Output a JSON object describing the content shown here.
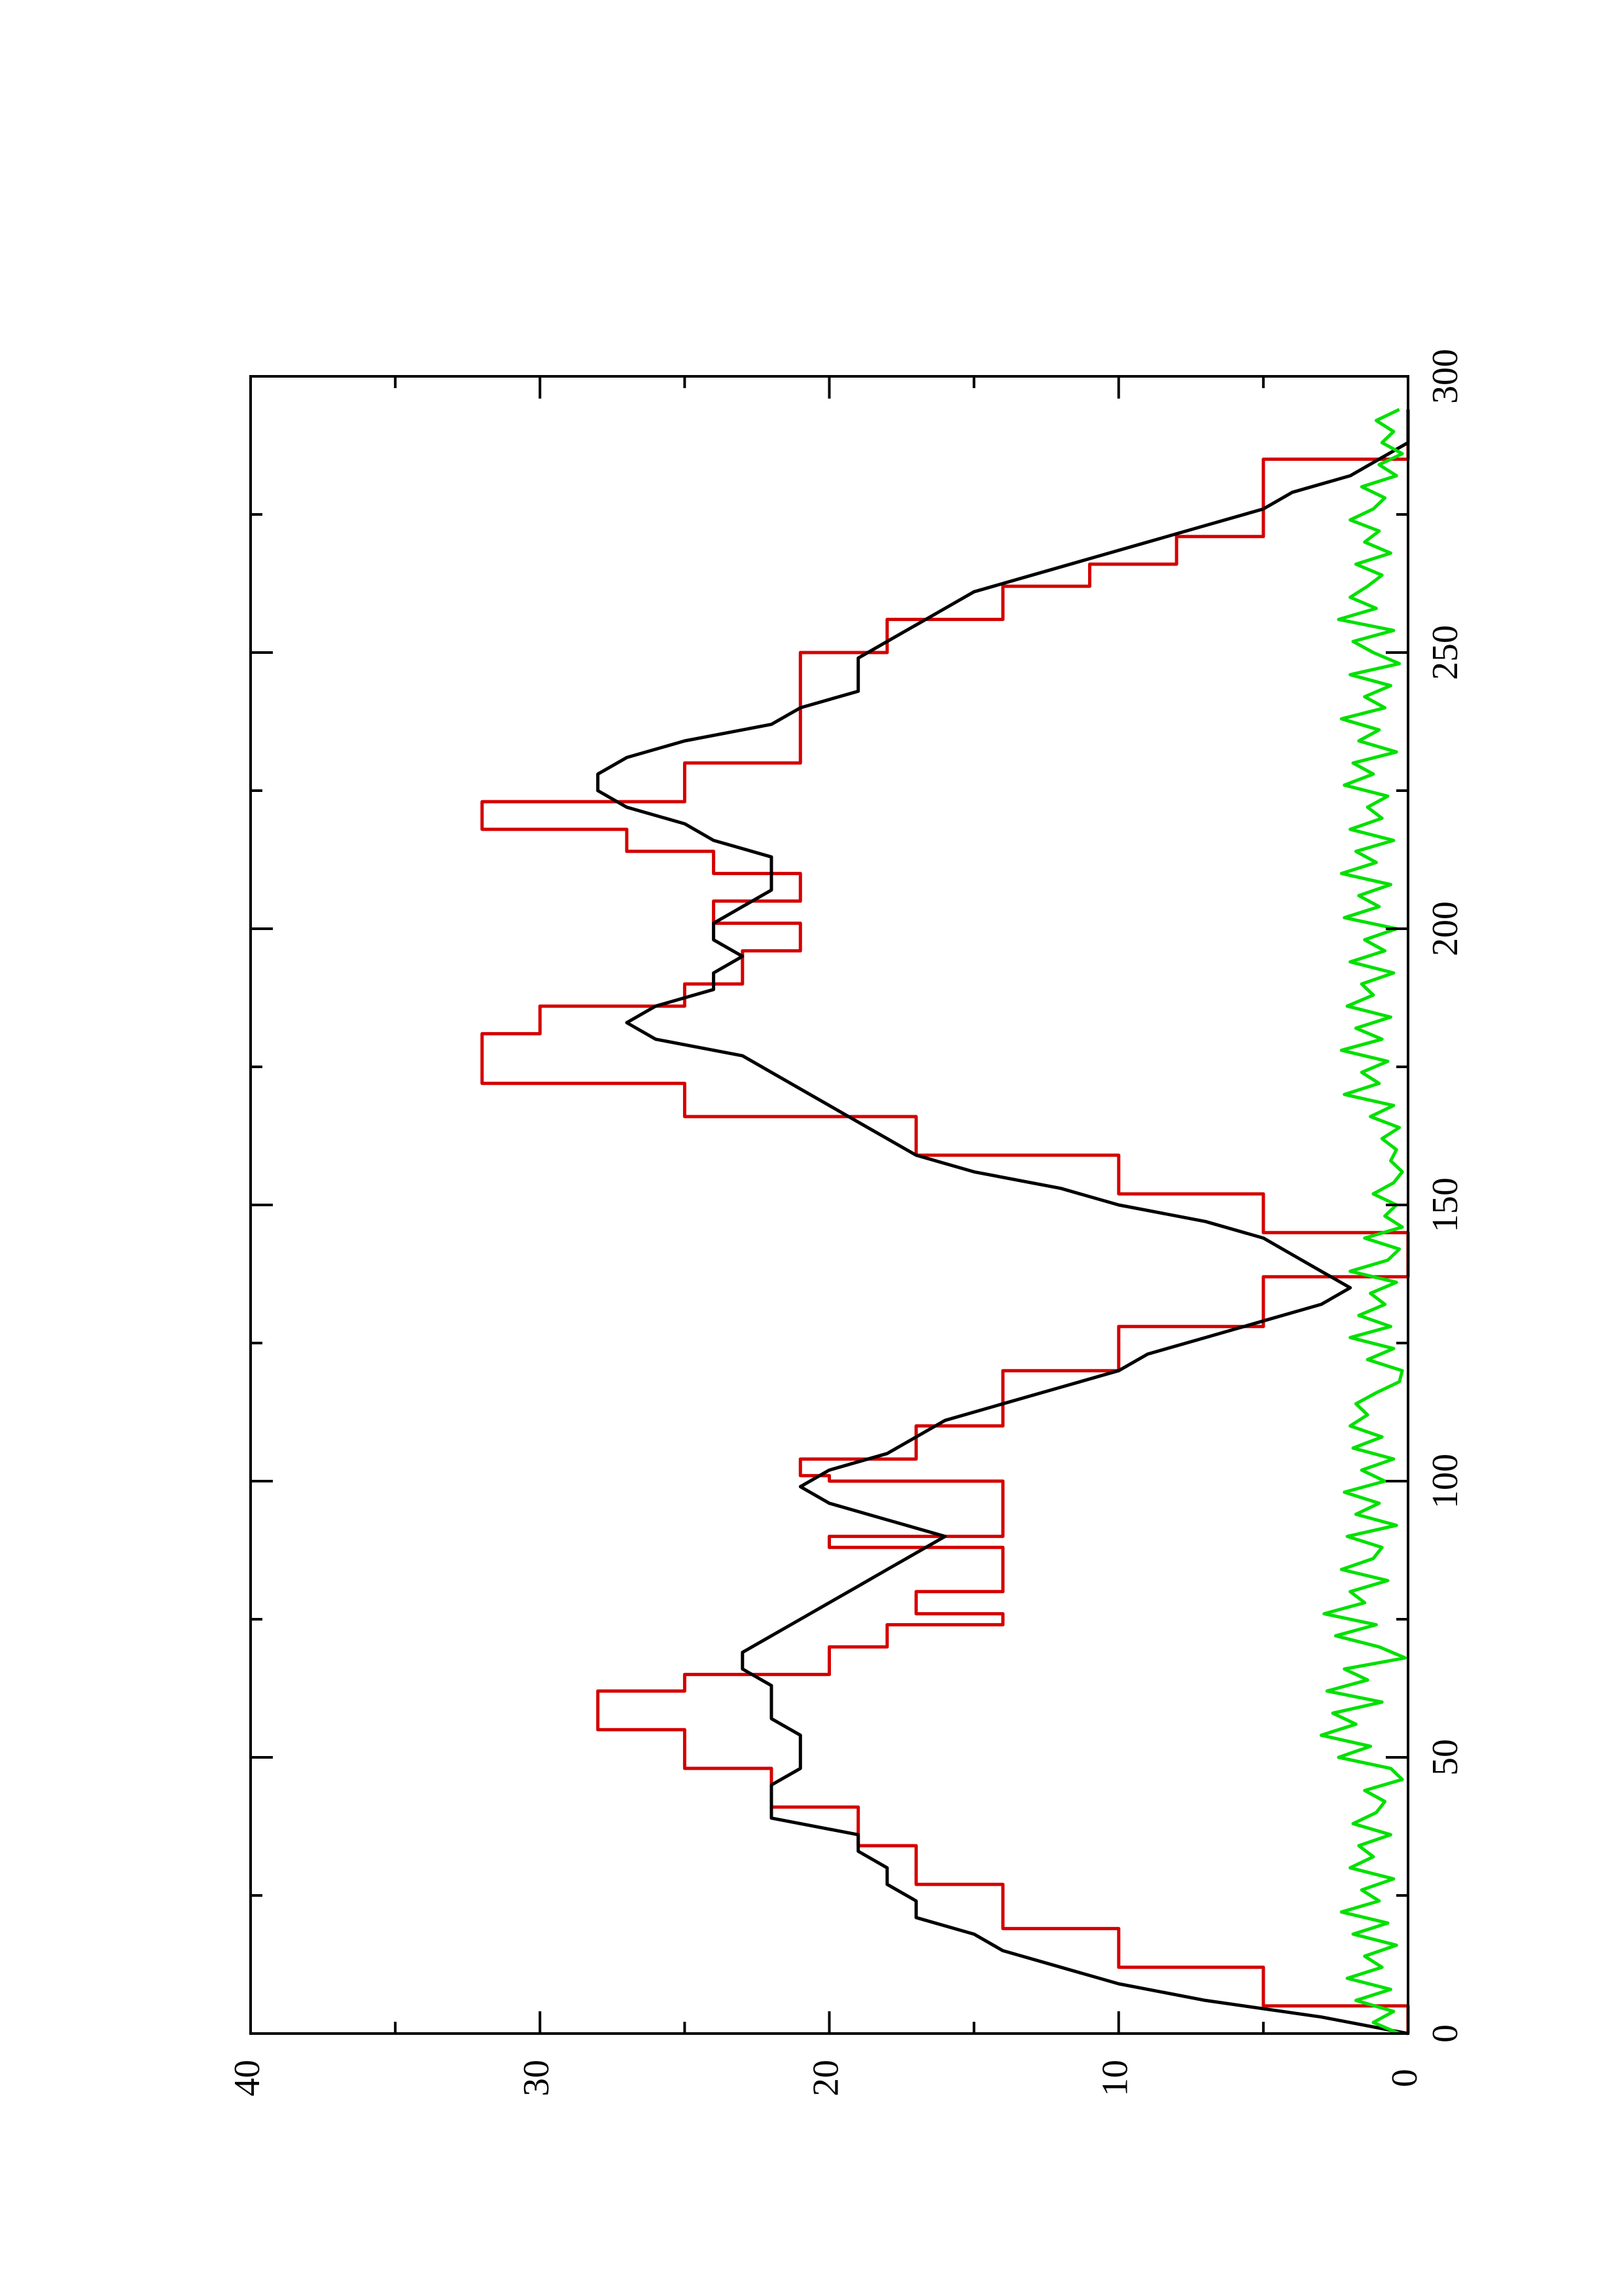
{
  "chart_data": {
    "type": "line",
    "title": "",
    "xlabel": "",
    "ylabel": "",
    "orientation": "rotated-90-ccw",
    "xlim": [
      0,
      300
    ],
    "ylim": [
      0,
      40
    ],
    "x_ticks": [
      0,
      50,
      100,
      150,
      200,
      250,
      300
    ],
    "x_tick_labels": [
      "0",
      "50",
      "100",
      "150",
      "200",
      "250",
      "300"
    ],
    "x_minor_ticks": [
      25,
      75,
      125,
      175,
      225,
      275
    ],
    "y_ticks": [
      0,
      10,
      20,
      30,
      40
    ],
    "y_tick_labels": [
      "0",
      "10",
      "20",
      "30",
      "40"
    ],
    "y_minor_ticks": [
      5,
      15,
      25,
      35
    ],
    "grid": false,
    "legend": "none",
    "series": [
      {
        "color": "#d40000",
        "x": [
          0,
          5,
          5,
          12,
          12,
          19,
          19,
          27,
          27,
          34,
          34,
          41,
          41,
          48,
          48,
          55,
          55,
          62,
          62,
          65,
          65,
          70,
          70,
          74,
          74,
          76,
          76,
          80,
          80,
          88,
          88,
          90,
          90,
          100,
          100,
          101,
          101,
          104,
          104,
          110,
          110,
          120,
          120,
          128,
          128,
          137,
          137,
          145,
          145,
          152,
          152,
          159,
          159,
          166,
          166,
          172,
          172,
          181,
          181,
          186,
          186,
          190,
          190,
          196,
          196,
          201,
          201,
          205,
          205,
          210,
          210,
          214,
          214,
          218,
          218,
          223,
          223,
          230,
          230,
          240,
          240,
          250,
          250,
          256,
          256,
          262,
          262,
          266,
          266,
          271,
          271,
          285,
          285,
          292
        ],
        "y": [
          0,
          0,
          5,
          5,
          10,
          10,
          14,
          14,
          17,
          17,
          19,
          19,
          22,
          22,
          25,
          25,
          28,
          28,
          25,
          25,
          20,
          20,
          18,
          18,
          14,
          14,
          17,
          17,
          14,
          14,
          20,
          20,
          14,
          14,
          20,
          20,
          21,
          21,
          17,
          17,
          14,
          14,
          10,
          10,
          5,
          5,
          0,
          0,
          5,
          5,
          10,
          10,
          17,
          17,
          25,
          25,
          32,
          32,
          30,
          30,
          25,
          25,
          23,
          23,
          21,
          21,
          24,
          24,
          21,
          21,
          24,
          24,
          27,
          27,
          32,
          32,
          25,
          25,
          21,
          21,
          21,
          21,
          18,
          18,
          14,
          14,
          11,
          11,
          8,
          8,
          5,
          5,
          0,
          0
        ]
      },
      {
        "color": "#000000",
        "x": [
          0,
          3,
          6,
          9,
          12,
          15,
          18,
          21,
          24,
          27,
          30,
          33,
          36,
          39,
          42,
          45,
          48,
          51,
          54,
          57,
          60,
          63,
          66,
          69,
          72,
          75,
          78,
          81,
          84,
          87,
          90,
          93,
          96,
          99,
          102,
          105,
          108,
          111,
          114,
          117,
          120,
          123,
          126,
          129,
          132,
          135,
          138,
          141,
          144,
          147,
          150,
          153,
          156,
          159,
          162,
          165,
          168,
          171,
          174,
          177,
          180,
          183,
          186,
          189,
          192,
          195,
          198,
          201,
          204,
          207,
          210,
          213,
          216,
          219,
          222,
          225,
          228,
          231,
          234,
          237,
          240,
          243,
          246,
          249,
          252,
          255,
          258,
          261,
          264,
          267,
          270,
          273,
          276,
          279,
          282,
          285,
          288,
          291,
          294
        ],
        "y": [
          0,
          3,
          7,
          10,
          12,
          14,
          15,
          17,
          17,
          18,
          18,
          19,
          19,
          22,
          22,
          22,
          21,
          21,
          21,
          22,
          22,
          22,
          23,
          23,
          22,
          21,
          20,
          19,
          18,
          17,
          16,
          18,
          20,
          21,
          20,
          18,
          17,
          16,
          14,
          12,
          10,
          9,
          7,
          5,
          3,
          2,
          3,
          4,
          5,
          7,
          10,
          12,
          15,
          17,
          18,
          19,
          20,
          21,
          22,
          23,
          26,
          27,
          26,
          24,
          24,
          23,
          24,
          24,
          23,
          22,
          22,
          22,
          24,
          25,
          27,
          28,
          28,
          27,
          25,
          22,
          21,
          19,
          19,
          19,
          18,
          17,
          16,
          15,
          13,
          11,
          9,
          7,
          5,
          4,
          2,
          1,
          0,
          0,
          0
        ]
      },
      {
        "color": "#00e000",
        "x": [
          0,
          2,
          4,
          6,
          8,
          10,
          12,
          14,
          16,
          18,
          20,
          22,
          24,
          26,
          28,
          30,
          32,
          34,
          36,
          38,
          40,
          42,
          44,
          46,
          48,
          50,
          52,
          54,
          56,
          58,
          60,
          62,
          64,
          66,
          68,
          70,
          72,
          74,
          76,
          78,
          80,
          82,
          84,
          86,
          88,
          90,
          92,
          94,
          96,
          98,
          100,
          102,
          104,
          106,
          108,
          110,
          112,
          114,
          116,
          118,
          120,
          122,
          124,
          126,
          128,
          130,
          132,
          134,
          136,
          138,
          140,
          142,
          144,
          146,
          148,
          150,
          152,
          154,
          156,
          158,
          160,
          162,
          164,
          166,
          168,
          170,
          172,
          174,
          176,
          178,
          180,
          182,
          184,
          186,
          188,
          190,
          192,
          194,
          196,
          198,
          200,
          202,
          204,
          206,
          208,
          210,
          212,
          214,
          216,
          218,
          220,
          222,
          224,
          226,
          228,
          230,
          232,
          234,
          236,
          238,
          240,
          242,
          244,
          246,
          248,
          250,
          252,
          254,
          256,
          258,
          260,
          262,
          264,
          266,
          268,
          270,
          272,
          274,
          276,
          278,
          280,
          282,
          284,
          286,
          288,
          290,
          292,
          294
        ],
        "y": [
          0.3,
          1.2,
          0.5,
          1.8,
          0.6,
          2.1,
          0.9,
          1.5,
          0.4,
          1.9,
          0.7,
          2.3,
          1.0,
          1.6,
          0.5,
          2.0,
          1.2,
          1.7,
          0.6,
          1.9,
          1.1,
          0.8,
          1.5,
          0.2,
          0.6,
          2.4,
          1.3,
          3.0,
          1.8,
          2.6,
          0.9,
          2.8,
          1.4,
          2.2,
          0.1,
          1.0,
          2.5,
          1.1,
          2.9,
          1.5,
          2.0,
          0.7,
          2.3,
          1.2,
          0.9,
          2.1,
          0.4,
          1.8,
          1.0,
          2.2,
          0.8,
          1.6,
          0.5,
          1.9,
          0.9,
          2.0,
          1.4,
          1.8,
          1.1,
          0.3,
          0.2,
          1.4,
          0.5,
          2.0,
          0.6,
          1.7,
          0.8,
          1.3,
          0.4,
          2.0,
          0.7,
          0.3,
          1.5,
          0.2,
          0.8,
          0.4,
          1.2,
          0.5,
          0.2,
          0.6,
          0.4,
          0.9,
          0.3,
          1.3,
          0.5,
          2.2,
          1.0,
          1.6,
          0.7,
          2.3,
          0.9,
          1.8,
          0.6,
          2.1,
          1.2,
          1.6,
          0.5,
          2.0,
          0.8,
          1.5,
          0.4,
          2.2,
          1.0,
          1.7,
          0.6,
          2.3,
          1.1,
          1.8,
          0.5,
          2.0,
          0.9,
          1.4,
          0.7,
          2.2,
          1.2,
          1.9,
          0.4,
          1.7,
          1.0,
          2.3,
          0.8,
          1.5,
          0.6,
          2.0,
          0.3,
          1.2,
          1.9,
          0.5,
          2.4,
          1.1,
          2.0,
          1.4,
          0.9,
          1.8,
          0.6,
          1.5,
          1.0,
          2.0,
          1.2,
          0.8,
          1.6,
          0.4,
          1.0,
          0.2,
          0.9,
          0.5,
          1.1,
          0.3
        ]
      }
    ]
  }
}
